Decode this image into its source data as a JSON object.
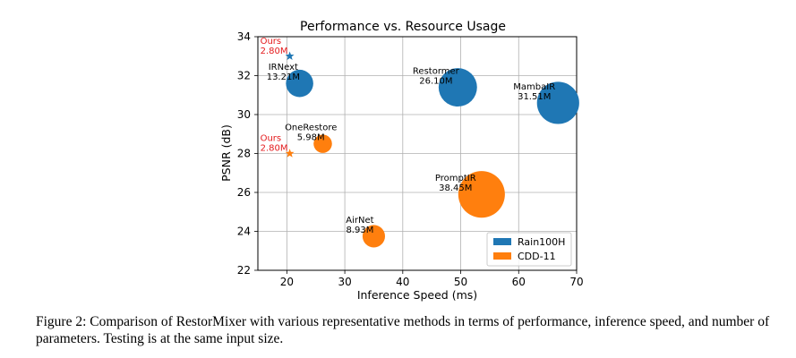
{
  "chart_data": {
    "type": "scatter",
    "title": "Performance vs. Resource Usage",
    "xlabel": "Inference Speed (ms)",
    "ylabel": "PSNR (dB)",
    "xlim": [
      15,
      70
    ],
    "ylim": [
      22,
      34
    ],
    "xticks": [
      20,
      30,
      40,
      50,
      60,
      70
    ],
    "yticks": [
      22,
      24,
      26,
      28,
      30,
      32,
      34
    ],
    "grid": true,
    "legend_position": "lower-right",
    "series": [
      {
        "name": "Rain100H",
        "color": "#1f77b4",
        "points": [
          {
            "label": "Ours",
            "params": "2.80M",
            "params_m": 2.8,
            "x": 20.5,
            "y": 33.0,
            "marker": "star",
            "highlight": true
          },
          {
            "label": "IRNext",
            "params": "13.21M",
            "params_m": 13.21,
            "x": 22.2,
            "y": 31.6,
            "marker": "circle"
          },
          {
            "label": "Restormer",
            "params": "26.10M",
            "params_m": 26.1,
            "x": 49.5,
            "y": 31.4,
            "marker": "circle"
          },
          {
            "label": "MambaIR",
            "params": "31.51M",
            "params_m": 31.51,
            "x": 66.8,
            "y": 30.6,
            "marker": "circle"
          }
        ]
      },
      {
        "name": "CDD-11",
        "color": "#ff7f0e",
        "points": [
          {
            "label": "Ours",
            "params": "2.80M",
            "params_m": 2.8,
            "x": 20.5,
            "y": 28.0,
            "marker": "star",
            "highlight": true
          },
          {
            "label": "OneRestore",
            "params": "5.98M",
            "params_m": 5.98,
            "x": 26.2,
            "y": 28.5,
            "marker": "circle"
          },
          {
            "label": "PromptIR",
            "params": "38.45M",
            "params_m": 38.45,
            "x": 53.6,
            "y": 25.9,
            "marker": "circle"
          },
          {
            "label": "AirNet",
            "params": "8.93M",
            "params_m": 8.93,
            "x": 35.0,
            "y": 23.75,
            "marker": "circle"
          }
        ]
      }
    ]
  },
  "highlight_color": "#e41a1c",
  "caption": "Figure 2: Comparison of RestorMixer with various representative methods in terms of performance, inference speed, and number of parameters. Testing is at the same input size."
}
